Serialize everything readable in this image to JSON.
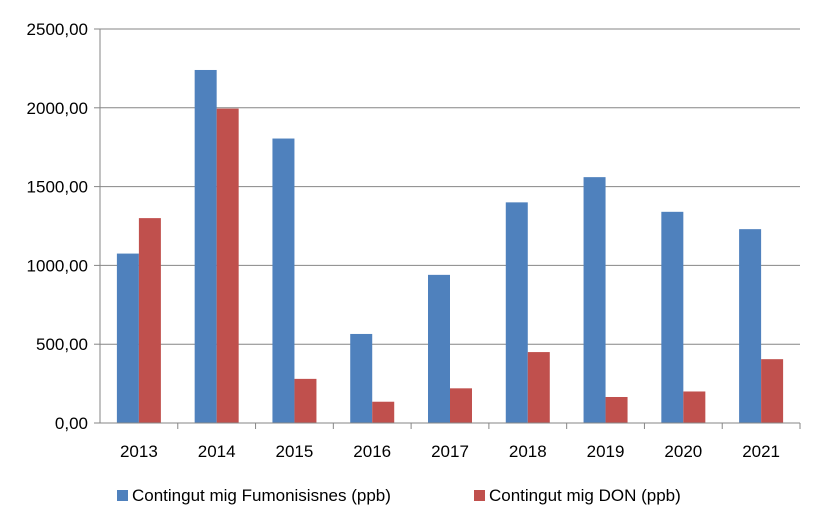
{
  "chart_data": {
    "type": "bar",
    "categories": [
      "2013",
      "2014",
      "2015",
      "2016",
      "2017",
      "2018",
      "2019",
      "2020",
      "2021"
    ],
    "series": [
      {
        "name": "Contingut mig Fumonisisnes (ppb)",
        "color": "#4F81BD",
        "values": [
          1075,
          2240,
          1805,
          565,
          940,
          1400,
          1560,
          1340,
          1230
        ]
      },
      {
        "name": "Contingut mig DON (ppb)",
        "color": "#C0504D",
        "values": [
          1300,
          1995,
          280,
          135,
          220,
          450,
          165,
          200,
          405
        ]
      }
    ],
    "y_ticks": [
      "0,00",
      "500,00",
      "1000,00",
      "1500,00",
      "2000,00",
      "2500,00"
    ],
    "ylim": [
      0,
      2500
    ],
    "grid": true,
    "legend_position": "bottom"
  }
}
